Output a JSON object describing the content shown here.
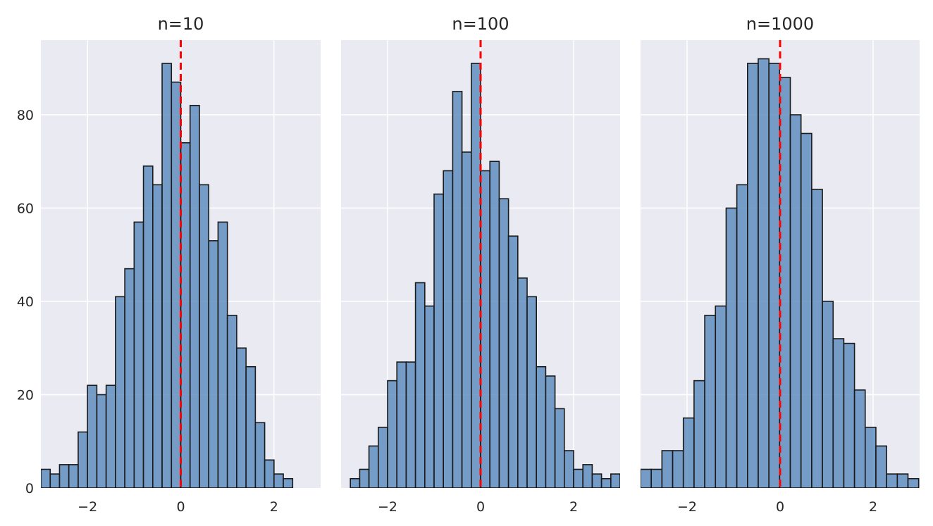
{
  "chart_data": [
    {
      "type": "bar",
      "title": "n=10",
      "xlim": [
        -3,
        3
      ],
      "ylim": [
        0,
        96
      ],
      "xticks": [
        "−2",
        "0",
        "2"
      ],
      "yticks": [
        "0",
        "20",
        "40",
        "60",
        "80"
      ],
      "ytick_values": [
        0,
        20,
        40,
        60,
        80
      ],
      "grid": true,
      "bin_start": -3.0,
      "bin_width": 0.2,
      "values": [
        4,
        3,
        5,
        5,
        12,
        22,
        20,
        22,
        41,
        47,
        57,
        69,
        65,
        91,
        87,
        74,
        82,
        65,
        53,
        57,
        37,
        30,
        26,
        14,
        6,
        3,
        2
      ],
      "reference_line_x": 0,
      "bar_color": "#5b8bbd",
      "reference_line_color": "#ff0000"
    },
    {
      "type": "bar",
      "title": "n=100",
      "xlim": [
        -3,
        3
      ],
      "ylim": [
        0,
        96
      ],
      "xticks": [
        "−2",
        "0",
        "2"
      ],
      "grid": true,
      "bin_start": -2.8,
      "bin_width": 0.2,
      "values": [
        2,
        4,
        9,
        13,
        23,
        27,
        27,
        44,
        39,
        63,
        68,
        85,
        72,
        91,
        68,
        70,
        62,
        54,
        45,
        41,
        26,
        24,
        17,
        8,
        4,
        5,
        3,
        2,
        3
      ],
      "reference_line_x": 0,
      "bar_color": "#5b8bbd",
      "reference_line_color": "#ff0000"
    },
    {
      "type": "bar",
      "title": "n=1000",
      "xlim": [
        -3,
        3
      ],
      "ylim": [
        0,
        96
      ],
      "xticks": [
        "−2",
        "0",
        "2"
      ],
      "grid": true,
      "bin_start": -3.0,
      "bin_width": 0.23,
      "values": [
        4,
        4,
        8,
        8,
        15,
        23,
        37,
        39,
        60,
        65,
        91,
        92,
        91,
        88,
        80,
        76,
        64,
        40,
        32,
        31,
        21,
        13,
        9,
        3,
        3,
        2
      ],
      "reference_line_x": 0,
      "bar_color": "#5b8bbd",
      "reference_line_color": "#ff0000"
    }
  ]
}
